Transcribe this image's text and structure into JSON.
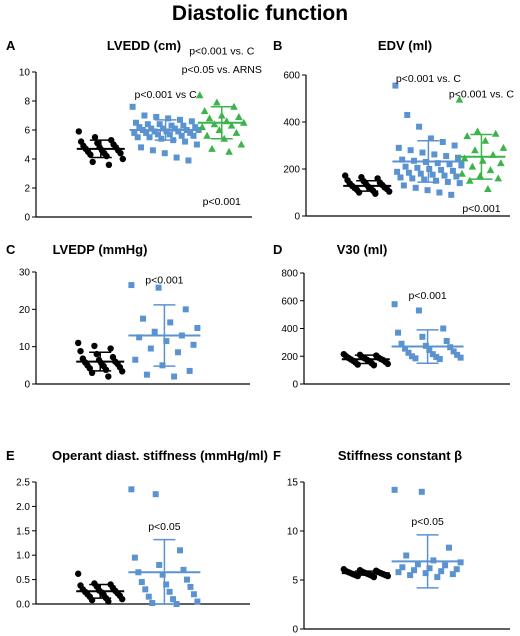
{
  "figure_title": "Diastolic function",
  "colors": {
    "control": "#000000",
    "arni": "#5b93d0",
    "arns": "#3cb44b"
  },
  "chart_data": [
    {
      "panel": "A",
      "type": "scatter",
      "title": "LVEDD (cm)",
      "ylim": [
        0,
        10
      ],
      "yticks": [
        0,
        2,
        4,
        6,
        8,
        10
      ],
      "groups": [
        {
          "color": "control",
          "marker": "circle",
          "mean": 4.7,
          "sd": 0.6,
          "values": [
            5.9,
            5.5,
            5.3,
            5.2,
            5.1,
            5.0,
            4.9,
            4.8,
            4.8,
            4.7,
            4.6,
            4.6,
            4.5,
            4.4,
            4.4,
            4.3,
            4.2,
            4.0,
            3.8,
            3.6
          ]
        },
        {
          "color": "arni",
          "marker": "square",
          "mean": 6.0,
          "sd": 0.7,
          "values": [
            7.6,
            7.0,
            6.9,
            6.8,
            6.7,
            6.6,
            6.5,
            6.4,
            6.4,
            6.3,
            6.3,
            6.2,
            6.2,
            6.1,
            6.1,
            6.1,
            6.0,
            6.0,
            6.0,
            5.9,
            5.9,
            5.9,
            5.8,
            5.8,
            5.8,
            5.7,
            5.7,
            5.6,
            5.6,
            5.5,
            5.5,
            5.4,
            5.3,
            5.2,
            5.0,
            4.8,
            4.6,
            4.4,
            4.1,
            3.9
          ]
        },
        {
          "color": "arns",
          "marker": "triangle",
          "mean": 6.5,
          "sd": 1.1,
          "values": [
            8.4,
            7.9,
            7.6,
            7.3,
            7.0,
            6.9,
            6.8,
            6.6,
            6.5,
            6.4,
            6.3,
            6.2,
            6.0,
            5.8,
            5.6,
            5.4,
            5.0,
            4.7,
            4.5
          ]
        }
      ],
      "annotations": [
        {
          "text": "p<0.001 vs C",
          "group": 1,
          "value": 8.5
        },
        {
          "text": "p<0.001 vs. C",
          "group": 2,
          "value": 11.5
        },
        {
          "text": "p<0.05 vs. ARNS",
          "group": 2,
          "value": 10.2
        },
        {
          "text": "p<0.001",
          "group": 2,
          "value": 1.1
        }
      ]
    },
    {
      "panel": "B",
      "type": "scatter",
      "title": "EDV (ml)",
      "ylim": [
        0,
        600
      ],
      "yticks": [
        0,
        200,
        400,
        600
      ],
      "groups": [
        {
          "color": "control",
          "marker": "circle",
          "mean": 128,
          "sd": 22,
          "values": [
            172,
            165,
            160,
            152,
            148,
            142,
            138,
            135,
            132,
            128,
            125,
            122,
            120,
            118,
            115,
            112,
            108,
            104,
            100,
            95
          ]
        },
        {
          "color": "arni",
          "marker": "square",
          "mean": 232,
          "sd": 88,
          "values": [
            555,
            430,
            380,
            330,
            315,
            300,
            290,
            280,
            270,
            262,
            255,
            248,
            240,
            235,
            230,
            225,
            220,
            215,
            210,
            205,
            200,
            196,
            192,
            188,
            184,
            180,
            176,
            172,
            168,
            164,
            160,
            155,
            150,
            145,
            140,
            130,
            120,
            110,
            100,
            90
          ]
        },
        {
          "color": "arns",
          "marker": "triangle",
          "mean": 252,
          "sd": 95,
          "values": [
            495,
            360,
            350,
            340,
            320,
            290,
            280,
            260,
            245,
            235,
            225,
            210,
            195,
            180,
            170,
            160,
            150,
            115
          ]
        }
      ],
      "annotations": [
        {
          "text": "p<0.001 vs. C",
          "group": 1,
          "value": 588
        },
        {
          "text": "p<0.001 vs. C",
          "group": 2,
          "value": 522
        },
        {
          "text": "p<0.001",
          "group": 2,
          "value": 35
        }
      ]
    },
    {
      "panel": "C",
      "type": "scatter",
      "title": "LVEDP (mmHg)",
      "ylim": [
        0,
        30
      ],
      "yticks": [
        0,
        10,
        20,
        30
      ],
      "groups": [
        {
          "color": "control",
          "marker": "circle",
          "mean": 6.0,
          "sd": 2.5,
          "values": [
            11.0,
            10.2,
            9.5,
            8.8,
            8.0,
            7.2,
            6.8,
            6.4,
            6.0,
            5.8,
            5.6,
            5.4,
            5.0,
            4.8,
            4.5,
            4.2,
            3.8,
            3.4,
            3.0,
            2.0
          ]
        },
        {
          "color": "arni",
          "marker": "square",
          "mean": 13.0,
          "sd": 8.2,
          "values": [
            26.5,
            25.8,
            20.0,
            17.5,
            16.5,
            15.0,
            14.0,
            13.0,
            12.5,
            11.5,
            10.5,
            9.5,
            8.5,
            6.5,
            5.0,
            3.5,
            2.5,
            2.0
          ]
        }
      ],
      "annotations": [
        {
          "text": "p<0.001",
          "group": 1,
          "value": 28
        }
      ]
    },
    {
      "panel": "D",
      "type": "scatter",
      "title": "V30 (ml)",
      "ylim": [
        0,
        800
      ],
      "yticks": [
        0,
        200,
        400,
        600,
        800
      ],
      "groups": [
        {
          "color": "control",
          "marker": "circle",
          "mean": 178,
          "sd": 30,
          "values": [
            215,
            210,
            205,
            200,
            195,
            190,
            188,
            185,
            180,
            178,
            175,
            172,
            168,
            165,
            160,
            155,
            150,
            145,
            140,
            135
          ]
        },
        {
          "color": "arni",
          "marker": "square",
          "mean": 270,
          "sd": 120,
          "values": [
            575,
            530,
            400,
            370,
            340,
            310,
            290,
            275,
            265,
            255,
            245,
            235,
            225,
            215,
            210,
            200,
            195,
            190,
            185,
            180
          ]
        }
      ],
      "annotations": [
        {
          "text": "p<0.001",
          "group": 1,
          "value": 640
        }
      ]
    },
    {
      "panel": "E",
      "type": "scatter",
      "title": "Operant diast. stiffness (mmHg/ml)",
      "ylim": [
        0,
        2.5
      ],
      "yticks": [
        0,
        0.5,
        1.0,
        1.5,
        2.0,
        2.5
      ],
      "yticklabels": [
        "0.0",
        "0.5",
        "1.0",
        "1.5",
        "2.0",
        "2.5"
      ],
      "groups": [
        {
          "color": "control",
          "marker": "circle",
          "mean": 0.26,
          "sd": 0.14,
          "values": [
            0.62,
            0.42,
            0.4,
            0.38,
            0.36,
            0.33,
            0.3,
            0.28,
            0.27,
            0.25,
            0.24,
            0.22,
            0.2,
            0.19,
            0.17,
            0.15,
            0.12,
            0.1,
            0.08,
            0.05
          ]
        },
        {
          "color": "arni",
          "marker": "square",
          "mean": 0.65,
          "sd": 0.67,
          "values": [
            2.35,
            2.25,
            1.1,
            0.95,
            0.8,
            0.7,
            0.65,
            0.6,
            0.5,
            0.45,
            0.4,
            0.35,
            0.3,
            0.25,
            0.2,
            0.15,
            0.1,
            0.05,
            0.02,
            0.0
          ]
        }
      ],
      "annotations": [
        {
          "text": "p<0.05",
          "group": 1,
          "value": 1.6
        }
      ]
    },
    {
      "panel": "F",
      "type": "scatter",
      "title": "Stiffness constant  β",
      "ylim": [
        0,
        15
      ],
      "yticks": [
        0,
        5,
        10,
        15
      ],
      "groups": [
        {
          "color": "control",
          "marker": "circle",
          "mean": 5.7,
          "sd": 0.2,
          "values": [
            6.1,
            6.0,
            5.95,
            5.9,
            5.85,
            5.8,
            5.8,
            5.75,
            5.7,
            5.7,
            5.65,
            5.6,
            5.6,
            5.55,
            5.5,
            5.5,
            5.45,
            5.4,
            5.4,
            5.3
          ]
        },
        {
          "color": "arni",
          "marker": "square",
          "mean": 6.9,
          "sd": 2.7,
          "values": [
            14.2,
            14.0,
            8.3,
            7.5,
            7.0,
            6.8,
            6.6,
            6.5,
            6.3,
            6.2,
            6.1,
            6.0,
            5.9,
            5.8,
            5.7,
            5.6,
            5.5,
            5.3
          ]
        }
      ],
      "annotations": [
        {
          "text": "p<0.05",
          "group": 1,
          "value": 11.0
        }
      ]
    }
  ]
}
